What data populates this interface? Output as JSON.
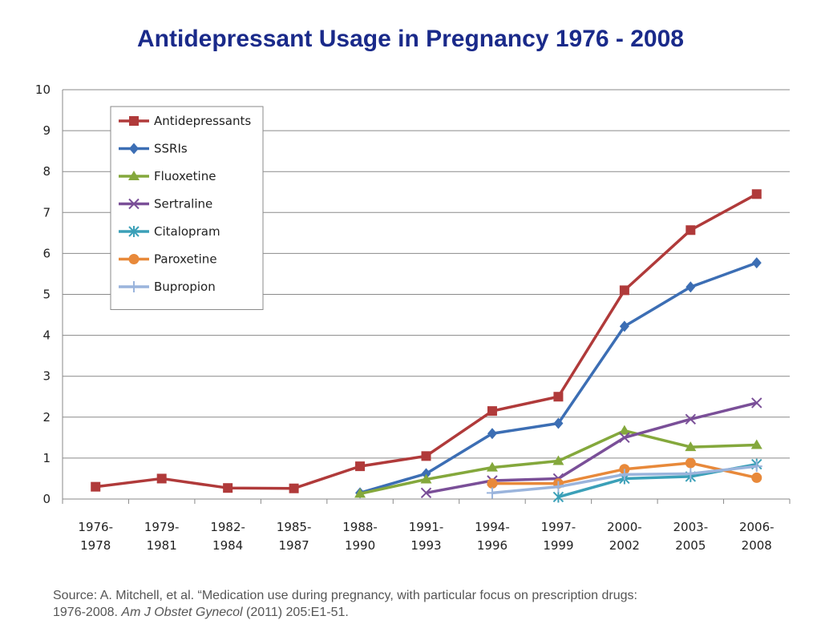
{
  "chart_data": {
    "type": "line",
    "title": "Antidepressant Usage in Pregnancy 1976 - 2008",
    "xlabel": "",
    "ylabel": "",
    "ylim": [
      0,
      10
    ],
    "yticks": [
      "0",
      "1",
      "2",
      "3",
      "4",
      "5",
      "6",
      "7",
      "8",
      "9",
      "10"
    ],
    "grid": true,
    "legend_position": "top-left",
    "categories": [
      [
        "1976-",
        "1978"
      ],
      [
        "1979-",
        "1981"
      ],
      [
        "1982-",
        "1984"
      ],
      [
        "1985-",
        "1987"
      ],
      [
        "1988-",
        "1990"
      ],
      [
        "1991-",
        "1993"
      ],
      [
        "1994-",
        "1996"
      ],
      [
        "1997-",
        "1999"
      ],
      [
        "2000-",
        "2002"
      ],
      [
        "2003-",
        "2005"
      ],
      [
        "2006-",
        "2008"
      ]
    ],
    "series": [
      {
        "name": "Antidepressants",
        "color": "#b03a3a",
        "marker": "square",
        "values": [
          0.3,
          0.5,
          0.27,
          0.26,
          0.8,
          1.05,
          2.15,
          2.5,
          5.1,
          6.57,
          7.45
        ]
      },
      {
        "name": "SSRIs",
        "color": "#3c6eb4",
        "marker": "diamond",
        "values": [
          null,
          null,
          null,
          null,
          0.15,
          0.62,
          1.6,
          1.85,
          4.22,
          5.18,
          5.77
        ]
      },
      {
        "name": "Fluoxetine",
        "color": "#84a83c",
        "marker": "triangle",
        "values": [
          null,
          null,
          null,
          null,
          0.13,
          0.48,
          0.77,
          0.93,
          1.67,
          1.27,
          1.32
        ]
      },
      {
        "name": "Sertraline",
        "color": "#7a4f98",
        "marker": "x",
        "values": [
          null,
          null,
          null,
          null,
          null,
          0.15,
          0.45,
          0.5,
          1.5,
          1.95,
          2.35
        ]
      },
      {
        "name": "Citalopram",
        "color": "#3ba0b8",
        "marker": "star",
        "values": [
          null,
          null,
          null,
          null,
          null,
          null,
          null,
          0.05,
          0.5,
          0.55,
          0.85
        ]
      },
      {
        "name": "Paroxetine",
        "color": "#e8893a",
        "marker": "circle",
        "values": [
          null,
          null,
          null,
          null,
          null,
          null,
          0.38,
          0.38,
          0.73,
          0.88,
          0.52
        ]
      },
      {
        "name": "Bupropion",
        "color": "#9ab4dc",
        "marker": "plus",
        "values": [
          null,
          null,
          null,
          null,
          null,
          null,
          0.15,
          0.3,
          0.6,
          0.62,
          0.8
        ]
      }
    ]
  },
  "source": {
    "line1": "Source: A. Mitchell, et al. “Medication use during pregnancy, with particular focus on prescription drugs:",
    "line2_plain": "1976-2008. ",
    "line2_italic": "Am J Obstet Gynecol",
    "line2_end": " (2011) 205:E1-51."
  }
}
